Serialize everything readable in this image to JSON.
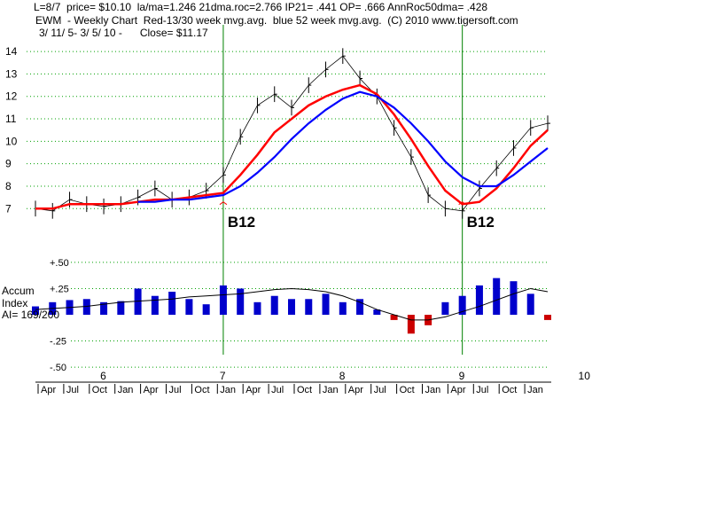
{
  "header": {
    "line1": "L=8/7  price= $10.10  la/ma=1.246 21dma.roc=2.766 IP21= .441 OP= .666 AnnRoc50dma= .428",
    "line2": "EWM  - Weekly Chart  Red-13/30 week mvg.avg.  blue 52 week mvg.avg.  (C) 2010 www.tigersoft.com",
    "line3": "3/ 11/ 5- 3/ 5/ 10 -      Close= $11.17"
  },
  "colors": {
    "red": "#ff0000",
    "blue": "#0000ff",
    "green": "#008000",
    "grid": "#00a000",
    "accum_pos": "#0000cc",
    "accum_neg": "#cc0000"
  },
  "chart_data": [
    {
      "type": "line",
      "title": "",
      "ylim": [
        6.3,
        14.4
      ],
      "y_ticks": [
        7,
        8,
        9,
        10,
        11,
        12,
        13,
        14
      ],
      "x": [
        0,
        10,
        20,
        30,
        40,
        50,
        60,
        70,
        80,
        90,
        100,
        110,
        120,
        130,
        140,
        150,
        160,
        170,
        180,
        190,
        200,
        210,
        220,
        230,
        240,
        250,
        260,
        270,
        280,
        290,
        300
      ],
      "series": [
        {
          "name": "price",
          "values": [
            7.0,
            6.9,
            7.4,
            7.2,
            7.1,
            7.2,
            7.5,
            7.9,
            7.4,
            7.5,
            7.8,
            8.5,
            10.2,
            11.6,
            12.1,
            11.5,
            12.5,
            13.2,
            13.8,
            12.8,
            12.0,
            10.6,
            9.3,
            7.6,
            7.0,
            6.9,
            7.9,
            8.8,
            9.7,
            10.6,
            10.8
          ]
        },
        {
          "name": "Red-13/30 week mvg.avg.",
          "values": [
            7.0,
            7.0,
            7.2,
            7.2,
            7.2,
            7.2,
            7.3,
            7.4,
            7.4,
            7.5,
            7.6,
            7.7,
            8.5,
            9.4,
            10.4,
            11.0,
            11.6,
            12.0,
            12.3,
            12.5,
            12.1,
            11.2,
            10.1,
            8.9,
            7.8,
            7.2,
            7.3,
            7.9,
            8.8,
            9.8,
            10.5
          ]
        },
        {
          "name": "blue 52 week mvg.avg.",
          "values": [
            null,
            null,
            null,
            null,
            null,
            null,
            7.3,
            7.3,
            7.4,
            7.4,
            7.5,
            7.6,
            8.0,
            8.6,
            9.3,
            10.1,
            10.8,
            11.4,
            11.9,
            12.2,
            12.0,
            11.5,
            10.8,
            10.0,
            9.1,
            8.4,
            8.0,
            8.0,
            8.5,
            9.1,
            9.7
          ]
        }
      ],
      "annotations": [
        {
          "label": "B12",
          "x": 110
        },
        {
          "label": "B12",
          "x": 250
        }
      ]
    },
    {
      "type": "bar",
      "ylabel": "Accum Index",
      "ylabel_lines": [
        "Accum",
        "Index",
        "AI= 169/200"
      ],
      "ylim": [
        -0.55,
        0.55
      ],
      "y_ticks": [
        0.5,
        0.25,
        -0.25,
        -0.5
      ],
      "y_tick_labels": [
        "+.50",
        "+.25",
        "-.25",
        "-.50"
      ],
      "x": [
        0,
        10,
        20,
        30,
        40,
        50,
        60,
        70,
        80,
        90,
        100,
        110,
        120,
        130,
        140,
        150,
        160,
        170,
        180,
        190,
        200,
        210,
        220,
        230,
        240,
        250,
        260,
        270,
        280,
        290,
        300
      ],
      "values": [
        0.08,
        0.12,
        0.14,
        0.15,
        0.12,
        0.13,
        0.25,
        0.18,
        0.22,
        0.15,
        0.1,
        0.28,
        0.25,
        0.12,
        0.18,
        0.15,
        0.15,
        0.2,
        0.12,
        0.15,
        0.05,
        -0.05,
        -0.18,
        -0.1,
        0.12,
        0.18,
        0.28,
        0.35,
        0.32,
        0.2,
        -0.05
      ],
      "smoothed": [
        0.05,
        0.06,
        0.07,
        0.08,
        0.1,
        0.12,
        0.13,
        0.14,
        0.15,
        0.17,
        0.18,
        0.19,
        0.2,
        0.22,
        0.24,
        0.25,
        0.24,
        0.22,
        0.18,
        0.12,
        0.05,
        0.0,
        -0.05,
        -0.05,
        -0.02,
        0.03,
        0.08,
        0.14,
        0.2,
        0.25,
        0.22
      ]
    }
  ],
  "x_axis": {
    "year_labels": [
      {
        "label": "6",
        "x": 40
      },
      {
        "label": "7",
        "x": 110
      },
      {
        "label": "8",
        "x": 180
      },
      {
        "label": "9",
        "x": 250
      },
      {
        "label": "10",
        "x": 320
      }
    ],
    "month_labels": [
      "Apr",
      "Jul",
      "Oct",
      "Jan",
      "Apr",
      "Jul",
      "Oct",
      "Jan",
      "Apr",
      "Jul",
      "Oct",
      "Jan",
      "Apr",
      "Jul",
      "Oct",
      "Jan",
      "Apr",
      "Jul",
      "Oct",
      "Jan"
    ]
  }
}
